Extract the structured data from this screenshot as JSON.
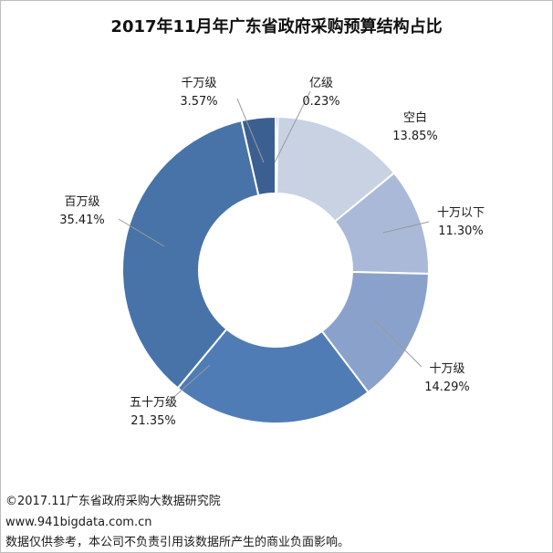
{
  "chart_data": {
    "type": "pie",
    "variant": "donut",
    "title": "2017年11月年广东省政府采购预算结构占比",
    "slices": [
      {
        "name": "亿级",
        "value": 0.23,
        "label": "0.23%",
        "color": "#2f4e7c"
      },
      {
        "name": "空白",
        "value": 13.85,
        "label": "13.85%",
        "color": "#c8d2e3"
      },
      {
        "name": "十万以下",
        "value": 11.3,
        "label": "11.30%",
        "color": "#a9b9d7"
      },
      {
        "name": "十万级",
        "value": 14.29,
        "label": "14.29%",
        "color": "#8aa2cb"
      },
      {
        "name": "五十万级",
        "value": 21.35,
        "label": "21.35%",
        "color": "#4f7cb5"
      },
      {
        "name": "百万级",
        "value": 35.41,
        "label": "35.41%",
        "color": "#4773a8"
      },
      {
        "name": "千万级",
        "value": 3.57,
        "label": "3.57%",
        "color": "#3b5f91"
      }
    ]
  },
  "footer": {
    "line1": "©2017.11广东省政府采购大数据研究院",
    "line2": "www.941bigdata.com.cn",
    "line3": "数据仅供参考，本公司不负责引用该数据所产生的商业负面影响。"
  }
}
